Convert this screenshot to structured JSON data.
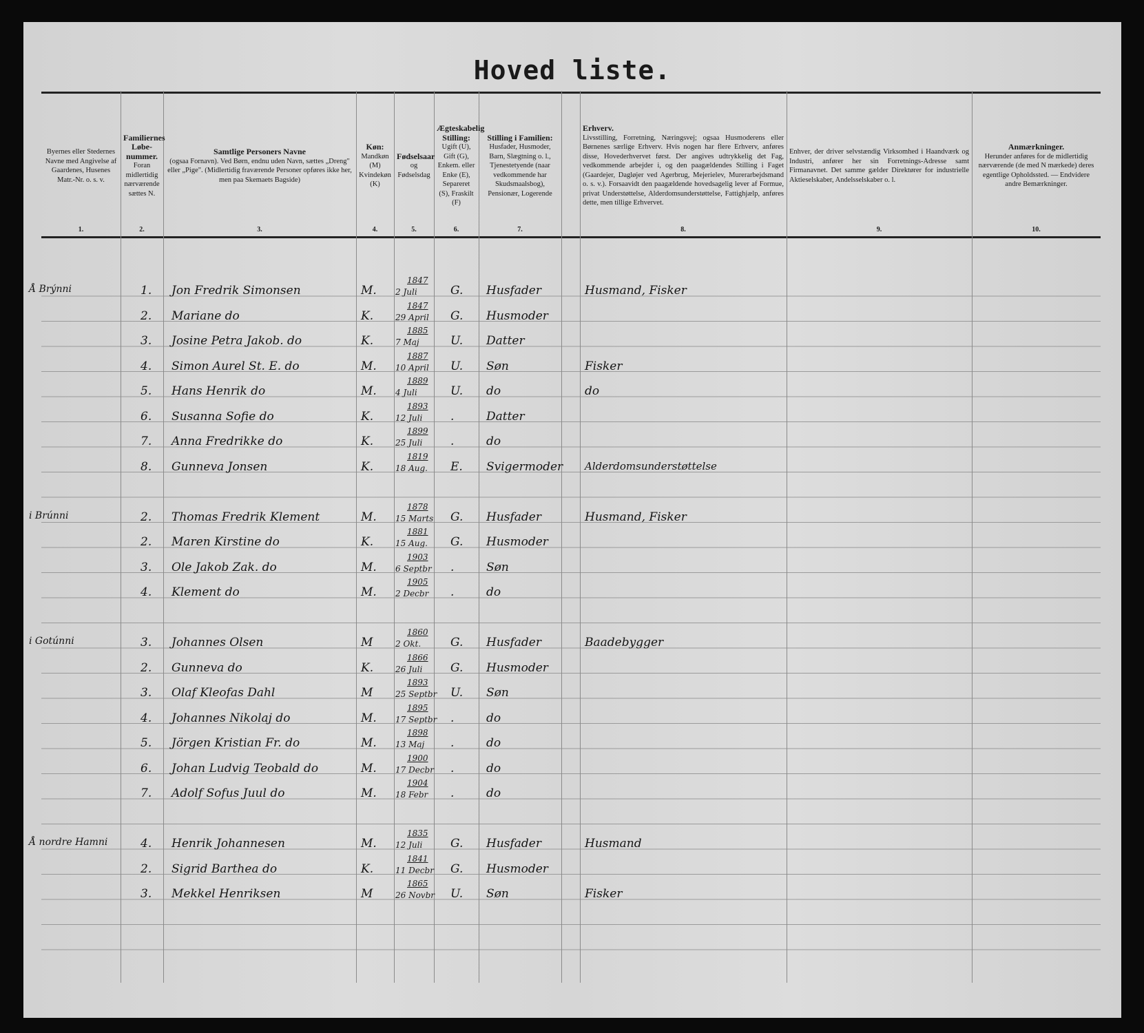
{
  "title": "Hoved liste.",
  "headers": [
    {
      "num": "1.",
      "title": "",
      "text": "Byernes eller Stedernes Navne med Angivelse af Gaardenes, Husenes Matr.-Nr. o. s. v."
    },
    {
      "num": "2.",
      "title": "Familiernes Løbe-nummer.",
      "text": "Foran midlertidig nærværende sættes N."
    },
    {
      "num": "3.",
      "title": "Samtlige Personers Navne",
      "text": "(ogsaa Fornavn). Ved Børn, endnu uden Navn, sættes „Dreng\" eller „Pige\". (Midlertidig fraværende Personer opføres ikke her, men paa Skemaets Bagside)"
    },
    {
      "num": "4.",
      "title": "Køn:",
      "text": "Mandkøn (M) Kvindekøn (K)"
    },
    {
      "num": "5.",
      "title": "Fødselsaar",
      "text": "og Fødselsdag"
    },
    {
      "num": "6.",
      "title": "Ægteskabelig Stilling:",
      "text": "Ugift (U), Gift (G), Enkem. eller Enke (E), Separeret (S), Fraskilt (F)"
    },
    {
      "num": "7.",
      "title": "Stilling i Familien:",
      "text": "Husfader, Husmoder, Barn, Slægtning o. l., Tjenestetyende (naar vedkommende har Skudsmaalsbog), Pensionær, Logerende"
    },
    {
      "num": "8.",
      "title": "Erhverv.",
      "text": "Livsstilling, Forretning, Næringsvej; ogsaa Husmoderens eller Børnenes særlige Erhverv. Hvis nogen har flere Erhverv, anføres disse, Hovederhvervet først. Der angives udtrykkelig det Fag, vedkommende arbejder i, og den paagældendes Stilling i Faget (Gaardejer, Dagløjer ved Agerbrug, Mejerielev, Murerarbejdsmand o. s. v.). Forsaavidt den paagældende hovedsagelig lever af Formue, privat Understøttelse, Alderdomsunderstøttelse, Fattighjælp, anføres dette, men tillige Erhvervet."
    },
    {
      "num": "9.",
      "title": "",
      "text": "Enhver, der driver selvstændig Virksomhed i Haandværk og Industri, anfører her sin Forretnings-Adresse samt Firmanavnet. Det samme gælder Direktører for industrielle Aktieselskaber, Andelsselskaber o. l."
    },
    {
      "num": "10.",
      "title": "Anmærkninger.",
      "text": "Herunder anføres for de midlertidig nærværende (de med N mærkede) deres egentlige Opholdssted. — Endvidere andre Bemærkninger."
    }
  ],
  "rows": [
    {
      "row": 0,
      "place": "Å Brýnni",
      "no": "1.",
      "name": "Jon Fredrik Simonsen",
      "sex": "M.",
      "year": "1847",
      "day": "2 Juli",
      "civil": "G.",
      "role": "Husfader",
      "occ": "Husmand, Fisker"
    },
    {
      "row": 1,
      "place": "",
      "no": "2.",
      "name": "Mariane   do",
      "sex": "K.",
      "year": "1847",
      "day": "29 April",
      "civil": "G.",
      "role": "Husmoder",
      "occ": ""
    },
    {
      "row": 2,
      "place": "",
      "no": "3.",
      "name": "Josine Petra Jakob.  do",
      "sex": "K.",
      "year": "1885",
      "day": "7 Maj",
      "civil": "U.",
      "role": "Datter",
      "occ": ""
    },
    {
      "row": 3,
      "place": "",
      "no": "4.",
      "name": "Simon Aurel St. E.  do",
      "sex": "M.",
      "year": "1887",
      "day": "10 April",
      "civil": "U.",
      "role": "Søn",
      "occ": "Fisker"
    },
    {
      "row": 4,
      "place": "",
      "no": "5.",
      "name": "Hans Henrik     do",
      "sex": "M.",
      "year": "1889",
      "day": "4 Juli",
      "civil": "U.",
      "role": "do",
      "occ": "do"
    },
    {
      "row": 5,
      "place": "",
      "no": "6.",
      "name": "Susanna Sofie   do",
      "sex": "K.",
      "year": "1893",
      "day": "12 Juli",
      "civil": ".",
      "role": "Datter",
      "occ": ""
    },
    {
      "row": 6,
      "place": "",
      "no": "7.",
      "name": "Anna Fredrikke   do",
      "sex": "K.",
      "year": "1899",
      "day": "25 Juli",
      "civil": ".",
      "role": "do",
      "occ": ""
    },
    {
      "row": 7,
      "place": "",
      "no": "8.",
      "name": "Gunneva   Jonsen",
      "sex": "K.",
      "year": "1819",
      "day": "18 Aug.",
      "civil": "E.",
      "role": "Svigermoder",
      "occ": "Alderdomsunderstøttelse"
    },
    {
      "row": 9,
      "place": "i Brúnni",
      "no": "2.",
      "name": "Thomas Fredrik Klement",
      "sex": "M.",
      "year": "1878",
      "day": "15 Marts",
      "civil": "G.",
      "role": "Husfader",
      "occ": "Husmand, Fisker"
    },
    {
      "row": 10,
      "place": "",
      "no": "2.",
      "name": "Maren Kirstine   do",
      "sex": "K.",
      "year": "1881",
      "day": "15 Aug.",
      "civil": "G.",
      "role": "Husmoder",
      "occ": ""
    },
    {
      "row": 11,
      "place": "",
      "no": "3.",
      "name": "Ole Jakob Zak.   do",
      "sex": "M.",
      "year": "1903",
      "day": "6 Septbr",
      "civil": ".",
      "role": "Søn",
      "occ": ""
    },
    {
      "row": 12,
      "place": "",
      "no": "4.",
      "name": "Klement        do",
      "sex": "M.",
      "year": "1905",
      "day": "2 Decbr",
      "civil": ".",
      "role": "do",
      "occ": ""
    },
    {
      "row": 14,
      "place": "i Gotúnni",
      "no": "3.",
      "name": "Johannes   Olsen",
      "sex": "M",
      "year": "1860",
      "day": "2 Okt.",
      "civil": "G.",
      "role": "Husfader",
      "occ": "Baadebygger"
    },
    {
      "row": 15,
      "place": "",
      "no": "2.",
      "name": "Gunneva        do",
      "sex": "K.",
      "year": "1866",
      "day": "26 Juli",
      "civil": "G.",
      "role": "Husmoder",
      "occ": ""
    },
    {
      "row": 16,
      "place": "",
      "no": "3.",
      "name": "Olaf Kleofas   Dahl",
      "sex": "M",
      "year": "1893",
      "day": "25 Septbr",
      "civil": "U.",
      "role": "Søn",
      "occ": ""
    },
    {
      "row": 17,
      "place": "",
      "no": "4.",
      "name": "Johannes Nikolaj   do",
      "sex": "M.",
      "year": "1895",
      "day": "17 Septbr",
      "civil": ".",
      "role": "do",
      "occ": ""
    },
    {
      "row": 18,
      "place": "",
      "no": "5.",
      "name": "Jörgen Kristian Fr.  do",
      "sex": "M.",
      "year": "1898",
      "day": "13 Maj",
      "civil": ".",
      "role": "do",
      "occ": ""
    },
    {
      "row": 19,
      "place": "",
      "no": "6.",
      "name": "Johan Ludvig Teobald  do",
      "sex": "M.",
      "year": "1900",
      "day": "17 Decbr",
      "civil": ".",
      "role": "do",
      "occ": ""
    },
    {
      "row": 20,
      "place": "",
      "no": "7.",
      "name": "Adolf Sofus Juul  do",
      "sex": "M.",
      "year": "1904",
      "day": "18 Febr",
      "civil": ".",
      "role": "do",
      "occ": ""
    },
    {
      "row": 22,
      "place": "Å nordre Hamni",
      "no": "4.",
      "name": "Henrik   Johannesen",
      "sex": "M.",
      "year": "1835",
      "day": "12 Juli",
      "civil": "G.",
      "role": "Husfader",
      "occ": "Husmand"
    },
    {
      "row": 23,
      "place": "",
      "no": "2.",
      "name": "Sigrid Barthea   do",
      "sex": "K.",
      "year": "1841",
      "day": "11 Decbr",
      "civil": "G.",
      "role": "Husmoder",
      "occ": ""
    },
    {
      "row": 24,
      "place": "",
      "no": "3.",
      "name": "Mekkel   Henriksen",
      "sex": "M",
      "year": "1865",
      "day": "26 Novbr",
      "civil": "U.",
      "role": "Søn",
      "occ": "Fisker"
    }
  ]
}
